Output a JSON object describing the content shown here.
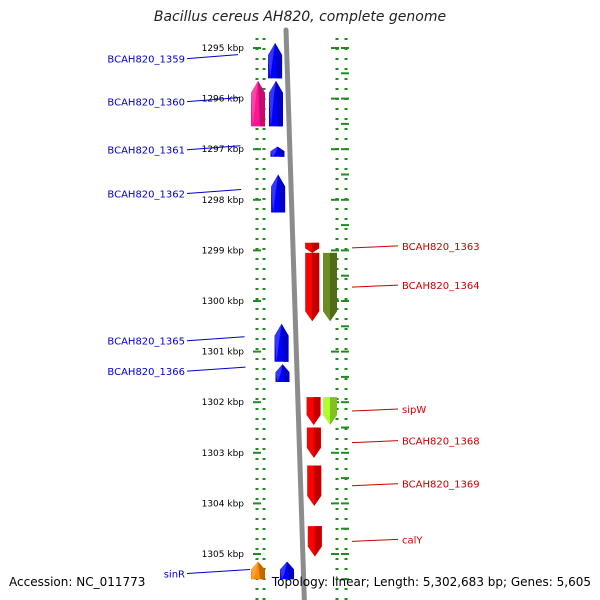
{
  "title": "Bacillus cereus AH820, complete genome",
  "footer": {
    "accession": "Accession: NC_011773",
    "summary": "Topology: linear; Length: 5,302,683 bp; Genes: 5,605"
  },
  "colors": {
    "background": "#ffffff",
    "backbone": "#8c8c8c",
    "tick": "#1e8c1e",
    "label_left": "#0000cc",
    "label_right": "#cc0000",
    "tick_label": "#000000"
  },
  "axis": {
    "unit": "kbp",
    "ticks": [
      {
        "value": 1295,
        "label": "1295 kbp"
      },
      {
        "value": 1296,
        "label": "1296 kbp"
      },
      {
        "value": 1297,
        "label": "1297 kbp"
      },
      {
        "value": 1298,
        "label": "1298 kbp"
      },
      {
        "value": 1299,
        "label": "1299 kbp"
      },
      {
        "value": 1300,
        "label": "1300 kbp"
      },
      {
        "value": 1301,
        "label": "1301 kbp"
      },
      {
        "value": 1302,
        "label": "1302 kbp"
      },
      {
        "value": 1303,
        "label": "1303 kbp"
      },
      {
        "value": 1304,
        "label": "1304 kbp"
      },
      {
        "value": 1305,
        "label": "1305 kbp"
      }
    ]
  },
  "genes": [
    {
      "id": "g1359",
      "label": "BCAH820_1359",
      "strand": "left",
      "color": "#0000ff",
      "start": 1294.9,
      "end": 1295.6
    },
    {
      "id": "g1360",
      "label": "BCAH820_1360",
      "strand": "left",
      "color": "#0000ff",
      "start": 1295.65,
      "end": 1296.55
    },
    {
      "id": "g1361",
      "label": "BCAH820_1361",
      "strand": "left",
      "color": "#0000ff",
      "start": 1296.95,
      "end": 1297.15
    },
    {
      "id": "g1362",
      "label": "BCAH820_1362",
      "strand": "left",
      "color": "#0000ff",
      "start": 1297.5,
      "end": 1298.25
    },
    {
      "id": "g1363",
      "label": "BCAH820_1363",
      "strand": "right",
      "color": "#ff0000",
      "start": 1298.85,
      "end": 1299.05
    },
    {
      "id": "g1364",
      "label": "BCAH820_1364",
      "strand": "right",
      "color": "#ff0000",
      "start": 1299.05,
      "end": 1300.4
    },
    {
      "id": "g1365",
      "label": "BCAH820_1365",
      "strand": "left",
      "color": "#0000ff",
      "start": 1300.45,
      "end": 1301.2
    },
    {
      "id": "g1366",
      "label": "BCAH820_1366",
      "strand": "left",
      "color": "#0000ff",
      "start": 1301.25,
      "end": 1301.6
    },
    {
      "id": "gsipW",
      "label": "sipW",
      "strand": "right",
      "color": "#ff0000",
      "start": 1301.9,
      "end": 1302.45
    },
    {
      "id": "g1368",
      "label": "BCAH820_1368",
      "strand": "right",
      "color": "#ff0000",
      "start": 1302.5,
      "end": 1303.1
    },
    {
      "id": "g1369",
      "label": "BCAH820_1369",
      "strand": "right",
      "color": "#ff0000",
      "start": 1303.25,
      "end": 1304.05
    },
    {
      "id": "gcalY",
      "label": "calY",
      "strand": "right",
      "color": "#ff0000",
      "start": 1304.45,
      "end": 1305.05
    },
    {
      "id": "gsinR",
      "label": "sinR",
      "strand": "left",
      "color": "#0000ff",
      "start": 1305.15,
      "end": 1305.5
    }
  ],
  "features": [
    {
      "id": "f1360",
      "color": "#ff1493",
      "strand": "left",
      "start": 1295.65,
      "end": 1296.55
    },
    {
      "id": "f1364",
      "color": "#6b8e23",
      "strand": "right",
      "start": 1299.05,
      "end": 1300.4
    },
    {
      "id": "fsipW",
      "color": "#adff2f",
      "strand": "right",
      "start": 1301.9,
      "end": 1302.45
    },
    {
      "id": "fsinR",
      "color": "#ff8c00",
      "strand": "left",
      "start": 1305.15,
      "end": 1305.5
    }
  ]
}
